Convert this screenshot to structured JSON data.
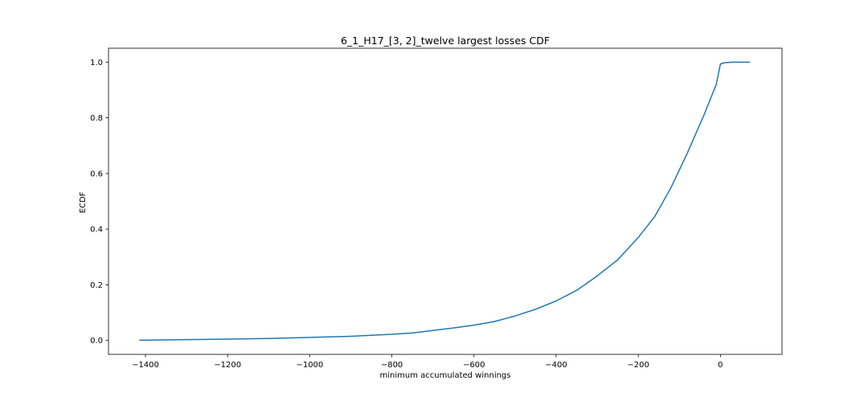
{
  "chart_data": {
    "type": "line",
    "title": "6_1_H17_[3, 2]_twelve largest losses CDF",
    "xlabel": "minimum accumulated winnings",
    "ylabel": "ECDF",
    "xlim": [
      -1490,
      150
    ],
    "ylim": [
      -0.05,
      1.05
    ],
    "xticks": [
      -1400,
      -1200,
      -1000,
      -800,
      -600,
      -400,
      -200,
      0
    ],
    "xtick_labels": [
      "−1400",
      "−1200",
      "−1000",
      "−800",
      "−600",
      "−400",
      "−200",
      "0"
    ],
    "yticks": [
      0.0,
      0.2,
      0.4,
      0.6,
      0.8,
      1.0
    ],
    "ytick_labels": [
      "0.0",
      "0.2",
      "0.4",
      "0.6",
      "0.8",
      "1.0"
    ],
    "grid": false,
    "line_color": "#1f77b4",
    "series": [
      {
        "x": [
          -1415,
          -1300,
          -1200,
          -1100,
          -1000,
          -900,
          -800,
          -750,
          -700,
          -650,
          -600,
          -550,
          -500,
          -450,
          -400,
          -350,
          -300,
          -250,
          -200,
          -160,
          -120,
          -80,
          -40,
          -10,
          0,
          10,
          30,
          50,
          72
        ],
        "y": [
          0.001,
          0.003,
          0.005,
          0.007,
          0.011,
          0.015,
          0.022,
          0.027,
          0.036,
          0.045,
          0.055,
          0.068,
          0.088,
          0.112,
          0.142,
          0.18,
          0.232,
          0.29,
          0.37,
          0.445,
          0.55,
          0.675,
          0.81,
          0.92,
          0.993,
          0.998,
          1.0,
          1.0,
          1.0
        ]
      }
    ]
  }
}
